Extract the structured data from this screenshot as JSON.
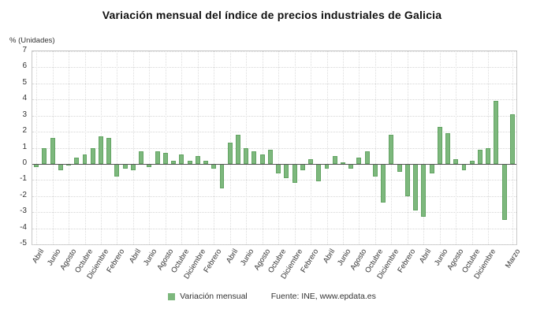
{
  "title": "Variación mensual del índice de precios industriales de Galicia",
  "y_axis_label": "% (Unidades)",
  "legend": {
    "label": "Variación mensual",
    "source": "Fuente: INE, www.epdata.es"
  },
  "colors": {
    "bar": "#7db87d",
    "bar_edge": "#63a463",
    "grid": "#d6d6d6",
    "axis_text": "#333333",
    "zero_line": "#555555"
  },
  "chart_data": {
    "type": "bar",
    "title": "Variación mensual del índice de precios industriales de Galicia",
    "ylabel": "% (Unidades)",
    "xlabel": "",
    "ylim": [
      -5,
      7
    ],
    "yticks": [
      7,
      6,
      5,
      4,
      3,
      2,
      1,
      0,
      -1,
      -2,
      -3,
      -4,
      -5
    ],
    "grid": true,
    "legend_position": "bottom",
    "months": [
      "Abril",
      "Mayo",
      "Junio",
      "Julio",
      "Agosto",
      "Septiembre",
      "Octubre",
      "Noviembre",
      "Diciembre",
      "Enero",
      "Febrero",
      "Marzo",
      "Abril",
      "Mayo",
      "Junio",
      "Julio",
      "Agosto",
      "Septiembre",
      "Octubre",
      "Noviembre",
      "Diciembre",
      "Enero",
      "Febrero",
      "Marzo",
      "Abril",
      "Mayo",
      "Junio",
      "Julio",
      "Agosto",
      "Septiembre",
      "Octubre",
      "Noviembre",
      "Diciembre",
      "Enero",
      "Febrero",
      "Marzo",
      "Abril",
      "Mayo",
      "Junio",
      "Julio",
      "Agosto",
      "Septiembre",
      "Octubre",
      "Noviembre",
      "Diciembre",
      "Enero",
      "Febrero",
      "Marzo",
      "Abril",
      "Mayo",
      "Junio",
      "Julio",
      "Agosto",
      "Septiembre",
      "Octubre",
      "Noviembre",
      "Diciembre",
      "Enero",
      "Febrero",
      "Marzo"
    ],
    "values": [
      -0.2,
      1.0,
      1.6,
      -0.4,
      -0.1,
      0.4,
      0.6,
      1.0,
      1.7,
      1.6,
      -0.8,
      -0.3,
      -0.4,
      0.8,
      -0.2,
      0.8,
      0.7,
      0.2,
      0.6,
      0.2,
      0.5,
      0.2,
      -0.3,
      -1.5,
      1.3,
      1.8,
      1.0,
      0.8,
      0.6,
      0.9,
      -0.6,
      -0.9,
      -1.2,
      -0.4,
      0.3,
      -1.1,
      -0.3,
      0.5,
      0.1,
      -0.3,
      0.4,
      0.8,
      -0.8,
      -2.4,
      1.8,
      -0.5,
      -2.0,
      -2.9,
      -3.3,
      -0.6,
      2.3,
      1.9,
      0.3,
      -0.4,
      0.2,
      0.9,
      1.0,
      3.9,
      -3.5,
      3.1
    ],
    "x_tick_positions": [
      0,
      2,
      4,
      6,
      8,
      10,
      12,
      14,
      16,
      18,
      20,
      22,
      24,
      26,
      28,
      30,
      32,
      34,
      36,
      38,
      40,
      42,
      44,
      46,
      48,
      50,
      52,
      54,
      56,
      59
    ],
    "x_tick_labels": [
      "Abril",
      "Junio",
      "Agosto",
      "Octubre",
      "Diciembre",
      "Febrero",
      "Abril",
      "Junio",
      "Agosto",
      "Octubre",
      "Diciembre",
      "Febrero",
      "Abril",
      "Junio",
      "Agosto",
      "Octubre",
      "Diciembre",
      "Febrero",
      "Abril",
      "Junio",
      "Agosto",
      "Octubre",
      "Diciembre",
      "Febrero",
      "Abril",
      "Junio",
      "Agosto",
      "Octubre",
      "Diciembre",
      "Marzo"
    ],
    "series_name": "Variación mensual"
  }
}
